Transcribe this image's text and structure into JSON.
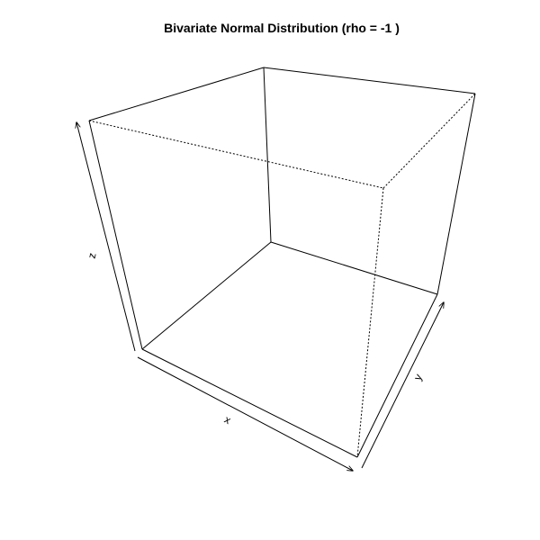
{
  "chart_data": {
    "type": "surface3d",
    "title": "Bivariate Normal Distribution (rho = -1 )",
    "xlabel": "x",
    "ylabel": "y",
    "zlabel": "z",
    "surface": "none",
    "box": true,
    "axes_type": "arrows"
  },
  "colors": {
    "background": "#ffffff",
    "foreground": "#000000"
  }
}
